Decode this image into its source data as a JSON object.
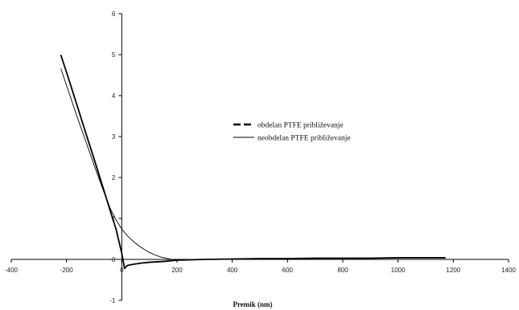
{
  "chart_data": {
    "type": "line",
    "title": "",
    "xlabel": "Premik (nm)",
    "ylabel": "",
    "xlim": [
      -400,
      1400
    ],
    "ylim": [
      -1,
      6
    ],
    "xticks": [
      -400,
      -200,
      0,
      200,
      400,
      600,
      800,
      1000,
      1200,
      1400
    ],
    "yticks": [
      -1,
      0,
      1,
      2,
      3,
      4,
      5,
      6
    ],
    "xtick_labels": [
      "-400",
      "-200",
      "0",
      "200",
      "400",
      "600",
      "800",
      "1000",
      "1200",
      "1400"
    ],
    "ytick_labels": [
      "-1",
      "0",
      "1",
      "2",
      "3",
      "4",
      "5",
      "6"
    ],
    "grid": false,
    "legend_position": "center-right",
    "series": [
      {
        "name": "obdelan PTFE približevanje",
        "style": "dashed-thick",
        "color": "#000000",
        "x": [
          -220,
          -190,
          -160,
          -130,
          -100,
          -70,
          -40,
          -20,
          0,
          10,
          20,
          40,
          70,
          100,
          150,
          200,
          300,
          400,
          500,
          600,
          700,
          800,
          900,
          1000,
          1100,
          1170
        ],
        "y": [
          4.98,
          4.36,
          3.72,
          3.08,
          2.45,
          1.8,
          1.15,
          0.72,
          0.15,
          -0.22,
          -0.15,
          -0.12,
          -0.09,
          -0.07,
          -0.05,
          -0.02,
          0.0,
          0.01,
          0.02,
          0.02,
          0.03,
          0.03,
          0.03,
          0.04,
          0.04,
          0.04
        ]
      },
      {
        "name": "neobdelan PTFE približevanje",
        "style": "solid-thin",
        "color": "#000000",
        "x": [
          -220,
          -190,
          -160,
          -130,
          -100,
          -70,
          -40,
          -20,
          0,
          20,
          40,
          60,
          80,
          100,
          120,
          140,
          160,
          180,
          200,
          300,
          400,
          500,
          600,
          700,
          800,
          900,
          1000,
          1100,
          1170
        ],
        "y": [
          4.65,
          4.05,
          3.45,
          2.88,
          2.3,
          1.74,
          1.22,
          0.96,
          0.74,
          0.58,
          0.45,
          0.34,
          0.25,
          0.17,
          0.11,
          0.06,
          0.03,
          0.0,
          -0.01,
          0.0,
          0.01,
          0.02,
          0.02,
          0.03,
          0.03,
          0.03,
          0.04,
          0.04,
          0.04
        ]
      }
    ]
  }
}
